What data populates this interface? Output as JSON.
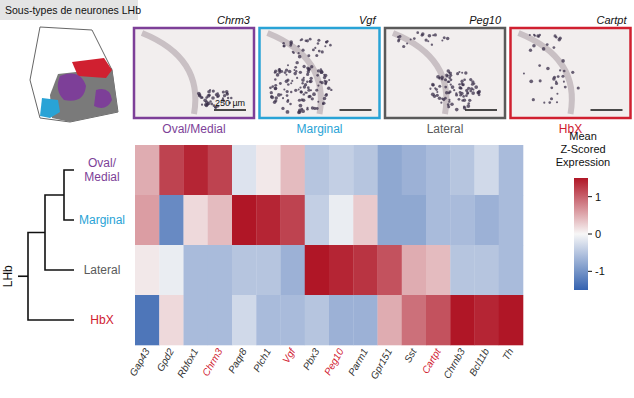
{
  "title": "Sous-types de neurones LHb",
  "scale_bar": "250 µm",
  "panels": [
    {
      "gene": "Chrm3",
      "label": "Oval/Medial",
      "color": "#7d3f98"
    },
    {
      "gene": "Vgf",
      "label": "Marginal",
      "color": "#29a3d6"
    },
    {
      "gene": "Peg10",
      "label": "Lateral",
      "color": "#5a5a5a"
    },
    {
      "gene": "Cartpt",
      "label": "HbX",
      "color": "#d02030"
    }
  ],
  "chart_data": {
    "type": "heatmap",
    "dendrogram_label": "LHb",
    "x": [
      "Gap43",
      "Gpd2",
      "Rbfox1",
      "Chrm3",
      "Paqr8",
      "Plch1",
      "Vgf",
      "Pbx3",
      "Peg10",
      "Parm1",
      "Gpr151",
      "Sst",
      "Cartpt",
      "Chrnb3",
      "Bcl11b",
      "Th"
    ],
    "y": [
      "Oval/Medial",
      "Marginal",
      "Lateral",
      "HbX"
    ],
    "values": [
      [
        0.5,
        1.2,
        1.4,
        1.2,
        -0.2,
        0.1,
        0.4,
        -0.5,
        -0.4,
        -0.5,
        -0.8,
        -0.7,
        -0.6,
        -0.5,
        -0.3,
        -0.6
      ],
      [
        0.6,
        -1.1,
        0.2,
        0.4,
        1.5,
        1.4,
        1.2,
        -0.4,
        -0.1,
        0.3,
        -0.8,
        -0.8,
        -0.6,
        -0.6,
        -0.7,
        -0.6
      ],
      [
        0.1,
        -0.1,
        -0.6,
        -0.6,
        -0.5,
        -0.5,
        -0.7,
        1.5,
        1.4,
        1.3,
        1.1,
        0.5,
        0.4,
        -0.5,
        -0.5,
        -0.6
      ],
      [
        -1.3,
        0.2,
        -0.6,
        -0.6,
        -0.3,
        -0.6,
        -0.6,
        -0.5,
        -0.7,
        -0.7,
        0.5,
        0.9,
        1.1,
        1.5,
        1.4,
        1.5
      ]
    ],
    "colorbar": {
      "title": "Mean Z-Scored Expression",
      "range": [
        -1.5,
        1.5
      ],
      "ticks": [
        -1,
        0,
        1
      ]
    }
  }
}
